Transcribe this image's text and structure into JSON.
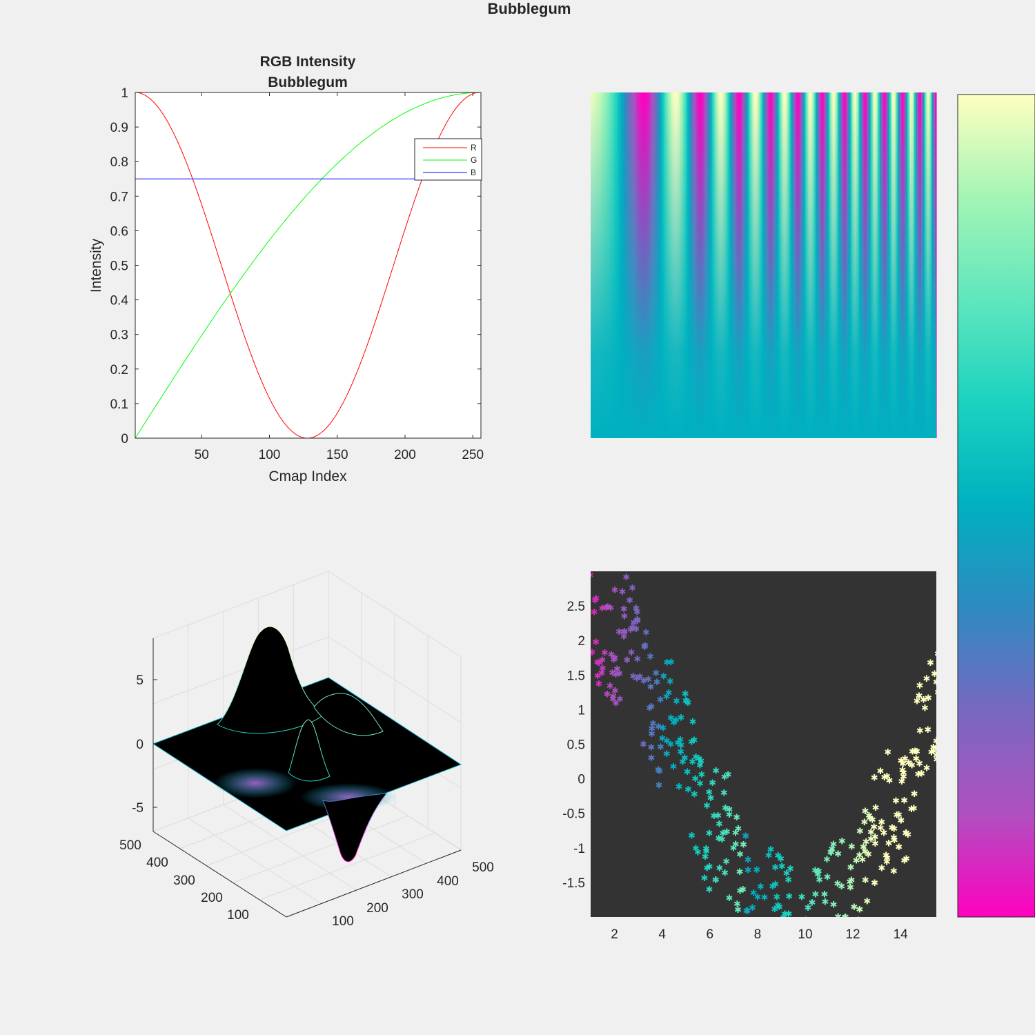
{
  "figure": {
    "title": "Bubblegum"
  },
  "colors": {
    "background": "#f0f0f0",
    "bubblegum_stops": [
      "#ff00c0",
      "#b050c0",
      "#7868c0",
      "#2f8ac0",
      "#00b0c0",
      "#1bd2c0",
      "#5fe6bd",
      "#a3f5b5",
      "#ffffc0"
    ],
    "scatter_bg": "#333333"
  },
  "chart_data": [
    {
      "type": "line",
      "title": "RGB Intensity",
      "subtitle": "Bubblegum",
      "xlabel": "Cmap Index",
      "ylabel": "Intensity",
      "xlim": [
        1,
        256
      ],
      "ylim": [
        0,
        1
      ],
      "xticks": [
        "50",
        "100",
        "150",
        "200",
        "250"
      ],
      "yticks": [
        "0",
        "0.1",
        "0.2",
        "0.3",
        "0.4",
        "0.5",
        "0.6",
        "0.7",
        "0.8",
        "0.9",
        "1"
      ],
      "legend_position": "top-right",
      "series": [
        {
          "name": "R",
          "color": "#ff0000",
          "x": [
            1,
            20,
            44,
            70,
            100,
            128,
            156,
            185,
            212,
            235,
            256
          ],
          "y": [
            1.0,
            0.94,
            0.75,
            0.41,
            0.1,
            0.0,
            0.1,
            0.4,
            0.74,
            0.94,
            1.0
          ]
        },
        {
          "name": "G",
          "color": "#00ff00",
          "x": [
            1,
            30,
            60,
            90,
            120,
            150,
            180,
            210,
            240,
            256
          ],
          "y": [
            0.0,
            0.18,
            0.35,
            0.51,
            0.65,
            0.78,
            0.88,
            0.95,
            0.99,
            1.0
          ]
        },
        {
          "name": "B",
          "color": "#0000ff",
          "x": [
            1,
            256
          ],
          "y": [
            0.75,
            0.75
          ]
        }
      ]
    },
    {
      "type": "heatmap",
      "colormap": "bubblegum",
      "description_value": "colour varies with column frequency increasing to the right, fading to constant value toward the bottom"
    },
    {
      "type": "surface",
      "zticks": [
        "5",
        "0",
        "-5"
      ],
      "xticks": [
        "100",
        "200",
        "300",
        "400",
        "500"
      ],
      "yticks": [
        "100",
        "200",
        "300",
        "400",
        "500"
      ],
      "zlim": [
        -7,
        8
      ]
    },
    {
      "type": "scatter",
      "background": "#333333",
      "xlim": [
        1,
        15.5
      ],
      "ylim": [
        -2,
        3
      ],
      "xticks": [
        "2",
        "4",
        "6",
        "8",
        "10",
        "12",
        "14"
      ],
      "yticks": [
        "2.5",
        "2",
        "1.5",
        "1",
        "0.5",
        "0",
        "-0.5",
        "-1",
        "-1.5"
      ],
      "marker": "*",
      "n_points": 400
    },
    {
      "type": "colorbar",
      "colormap": "bubblegum"
    }
  ]
}
